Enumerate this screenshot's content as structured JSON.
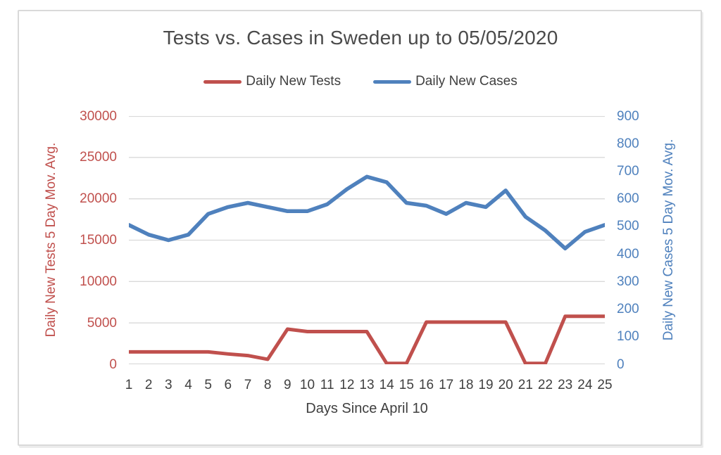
{
  "frame": {
    "border_color": "#d9d9d9",
    "background": "#ffffff"
  },
  "chart_data": {
    "type": "line",
    "title": "Tests vs. Cases in Sweden up to 05/05/2020",
    "x_axis": {
      "title": "Days Since April 10",
      "categories": [
        "1",
        "2",
        "3",
        "4",
        "5",
        "6",
        "7",
        "8",
        "9",
        "10",
        "11",
        "12",
        "13",
        "14",
        "15",
        "16",
        "17",
        "18",
        "19",
        "20",
        "21",
        "22",
        "23",
        "24",
        "25"
      ]
    },
    "left_axis": {
      "title": "Daily New Tests 5 Day Mov. Avg.",
      "range": [
        0,
        30000
      ],
      "step": 5000,
      "tick_labels": [
        "0",
        "5000",
        "10000",
        "15000",
        "20000",
        "25000",
        "30000"
      ],
      "color": "#C0504D"
    },
    "right_axis": {
      "title": "Daily New Cases 5 Day Mov. Avg.",
      "range": [
        0,
        900
      ],
      "step": 100,
      "tick_labels": [
        "0",
        "100",
        "200",
        "300",
        "400",
        "500",
        "600",
        "700",
        "800",
        "900"
      ],
      "color": "#4F81BD"
    },
    "gridlines": {
      "on": true,
      "color": "#d9d9d9",
      "aligned_to": "left_axis"
    },
    "legend": {
      "position": "top",
      "entries": [
        {
          "label": "Daily New Tests",
          "color": "#C0504D"
        },
        {
          "label": "Daily New Cases",
          "color": "#4F81BD"
        }
      ]
    },
    "series": [
      {
        "name": "Daily New Tests",
        "axis": "left_axis",
        "color": "#C0504D",
        "stroke_width": 5,
        "values": [
          1500,
          1500,
          1500,
          1500,
          1500,
          1250,
          1050,
          600,
          4250,
          3950,
          3950,
          3950,
          3950,
          100,
          100,
          5100,
          5100,
          5100,
          5100,
          5100,
          100,
          100,
          5800,
          5800,
          5800
        ]
      },
      {
        "name": "Daily New Cases",
        "axis": "right_axis",
        "color": "#4F81BD",
        "stroke_width": 5.5,
        "values": [
          505,
          470,
          450,
          470,
          545,
          570,
          585,
          570,
          555,
          555,
          580,
          635,
          680,
          660,
          585,
          575,
          545,
          585,
          570,
          630,
          535,
          485,
          420,
          480,
          505
        ]
      }
    ]
  }
}
